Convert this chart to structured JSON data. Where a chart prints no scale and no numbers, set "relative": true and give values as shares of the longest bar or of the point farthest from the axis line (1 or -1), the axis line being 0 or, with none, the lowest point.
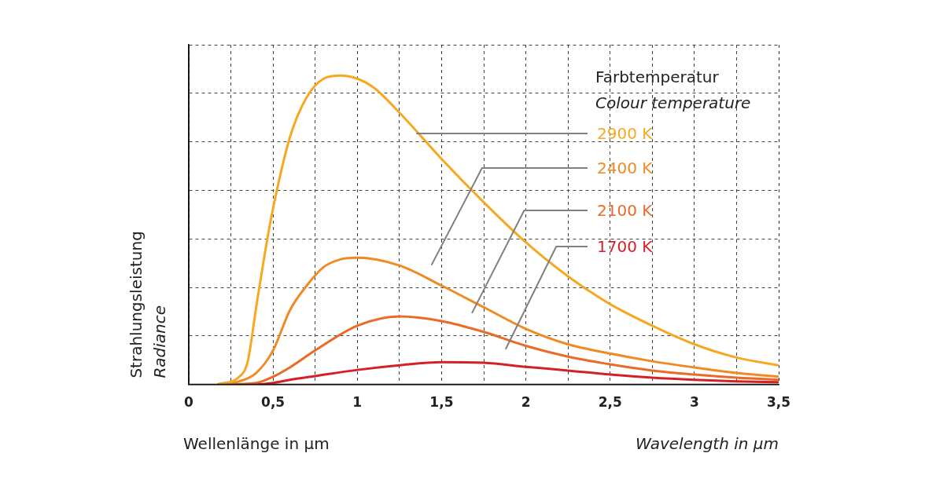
{
  "chart_data": {
    "type": "line",
    "relative": true,
    "xlabel": "Wellenlänge in µm",
    "ylabel": "Strahlungsleistung",
    "legend_title": "Farbtemperatur",
    "annotations": [
      "Wavelength in µm",
      "Radiance",
      "Colour temperature"
    ],
    "xlim": [
      0,
      3.5
    ],
    "xticks": [
      0,
      {
        "value": 0.25,
        "label": null
      },
      {
        "value": 0.5,
        "label": "0,5"
      },
      {
        "value": 0.75,
        "label": null
      },
      1,
      {
        "value": 1.25,
        "label": null
      },
      {
        "value": 1.5,
        "label": "1,5"
      },
      {
        "value": 1.75,
        "label": null
      },
      2,
      {
        "value": 2.25,
        "label": null
      },
      {
        "value": 2.5,
        "label": "2,5"
      },
      {
        "value": 2.75,
        "label": null
      },
      3,
      {
        "value": 3.25,
        "label": null
      },
      {
        "value": 3.5,
        "label": "3,5"
      }
    ],
    "grid": true,
    "legend": false,
    "tick_labels": "x",
    "marker": "none",
    "line_style": "solid",
    "series": [
      {
        "name": "2900 K",
        "color": "#f7a823",
        "x": [
          0.17,
          0.3,
          0.35,
          0.4,
          0.45,
          0.5,
          0.6,
          0.7,
          0.8,
          0.9,
          1.0,
          1.1,
          1.25,
          1.5,
          1.75,
          2,
          2.25,
          2.5,
          2.75,
          3,
          3.25,
          3.5
        ],
        "values": [
          0,
          0.025,
          0.075,
          0.25,
          0.42,
          0.57,
          0.8,
          0.93,
          0.99,
          1.0,
          0.99,
          0.96,
          0.88,
          0.73,
          0.59,
          0.46,
          0.35,
          0.26,
          0.19,
          0.13,
          0.087,
          0.062
        ]
      },
      {
        "name": "2400 K",
        "color": "#f08a24",
        "x": [
          0.17,
          0.3,
          0.4,
          0.5,
          0.6,
          0.7,
          0.8,
          0.9,
          1.0,
          1.25,
          1.5,
          1.75,
          2,
          2.25,
          2.5,
          2.75,
          3,
          3.25,
          3.5
        ],
        "values": [
          0,
          0.01,
          0.037,
          0.11,
          0.24,
          0.32,
          0.38,
          0.405,
          0.41,
          0.385,
          0.32,
          0.25,
          0.18,
          0.13,
          0.1,
          0.075,
          0.055,
          0.037,
          0.025
        ]
      },
      {
        "name": "2100 K",
        "color": "#ea6a26",
        "x": [
          0.17,
          0.4,
          0.5,
          0.6,
          0.75,
          1.0,
          1.25,
          1.5,
          1.75,
          2,
          2.25,
          2.5,
          2.75,
          3,
          3.25,
          3.5
        ],
        "values": [
          0,
          0.005,
          0.025,
          0.055,
          0.11,
          0.19,
          0.22,
          0.205,
          0.17,
          0.125,
          0.09,
          0.065,
          0.045,
          0.032,
          0.022,
          0.015
        ]
      },
      {
        "name": "1700 K",
        "color": "#d42027",
        "x": [
          0.17,
          0.4,
          0.5,
          0.6,
          0.75,
          1,
          1.25,
          1.5,
          1.75,
          2,
          2.25,
          2.5,
          2.75,
          3,
          3.25,
          3.5
        ],
        "values": [
          0,
          0,
          0.005,
          0.015,
          0.027,
          0.047,
          0.062,
          0.072,
          0.07,
          0.057,
          0.045,
          0.032,
          0.022,
          0.015,
          0.01,
          0.007
        ]
      }
    ]
  }
}
